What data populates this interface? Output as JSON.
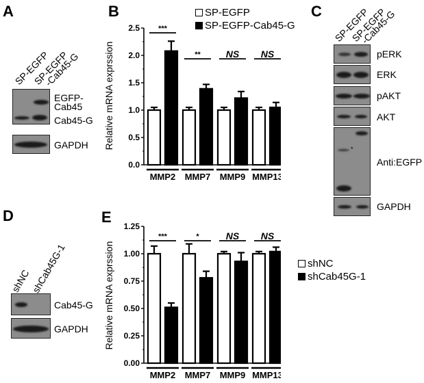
{
  "panels": {
    "A": {
      "letter": "A",
      "lanes": [
        "SP-EGFP",
        "SP-EGFP",
        "-Cab45-G"
      ],
      "bands": [
        "EGFP-",
        "Cab45",
        "Cab45-G",
        "GAPDH"
      ]
    },
    "C": {
      "letter": "C",
      "lanes": [
        "SP-EGFP",
        "SP-EGFP",
        "-Cab45-G"
      ],
      "bands": [
        "pERK",
        "ERK",
        "pAKT",
        "AKT",
        "Anti:EGFP",
        "GAPDH"
      ],
      "asterisk": "*"
    },
    "D": {
      "letter": "D",
      "lanes": [
        "shNC",
        "shCab45G-1"
      ],
      "bands": [
        "Cab45-G",
        "GAPDH"
      ]
    }
  },
  "chart_data": [
    {
      "panel": "B",
      "type": "bar",
      "title": "",
      "xlabel": "",
      "ylabel": "Relative mRNA exprssion",
      "ylim": [
        0,
        2.5
      ],
      "yticks": [
        "0.0",
        "0.5",
        "1.0",
        "1.5",
        "2.0",
        "2.5"
      ],
      "categories": [
        "MMP2",
        "MMP7",
        "MMP9",
        "MMP13"
      ],
      "series": [
        {
          "name": "SP-EGFP",
          "color": "#ffffff",
          "values": [
            1.0,
            1.0,
            1.0,
            1.0
          ],
          "errors": [
            0.05,
            0.05,
            0.05,
            0.05
          ]
        },
        {
          "name": "SP-EGFP-Cab45-G",
          "color": "#000000",
          "values": [
            2.08,
            1.39,
            1.22,
            1.05
          ],
          "errors": [
            0.18,
            0.08,
            0.12,
            0.09
          ]
        }
      ],
      "significance": [
        "***",
        "**",
        "NS",
        "NS"
      ],
      "legend_position": "top"
    },
    {
      "panel": "E",
      "type": "bar",
      "title": "",
      "xlabel": "",
      "ylabel": "Relative mRNA exprssion",
      "ylim": [
        0,
        1.25
      ],
      "yticks": [
        "0.00",
        "0.25",
        "0.50",
        "0.75",
        "1.00",
        "1.25"
      ],
      "categories": [
        "MMP2",
        "MMP7",
        "MMP9",
        "MMP13"
      ],
      "series": [
        {
          "name": "shNC",
          "color": "#ffffff",
          "values": [
            1.0,
            1.0,
            1.0,
            1.0
          ],
          "errors": [
            0.07,
            0.09,
            0.02,
            0.02
          ]
        },
        {
          "name": "shCab45G-1",
          "color": "#000000",
          "values": [
            0.51,
            0.78,
            0.93,
            1.02
          ],
          "errors": [
            0.04,
            0.06,
            0.08,
            0.04
          ]
        }
      ],
      "significance": [
        "***",
        "*",
        "NS",
        "NS"
      ],
      "legend_position": "right"
    }
  ],
  "labels": {
    "B": "B",
    "E": "E",
    "legendB": [
      "SP-EGFP",
      "SP-EGFP-Cab45-G"
    ],
    "legendE": [
      "shNC",
      "shCab45G-1"
    ]
  }
}
